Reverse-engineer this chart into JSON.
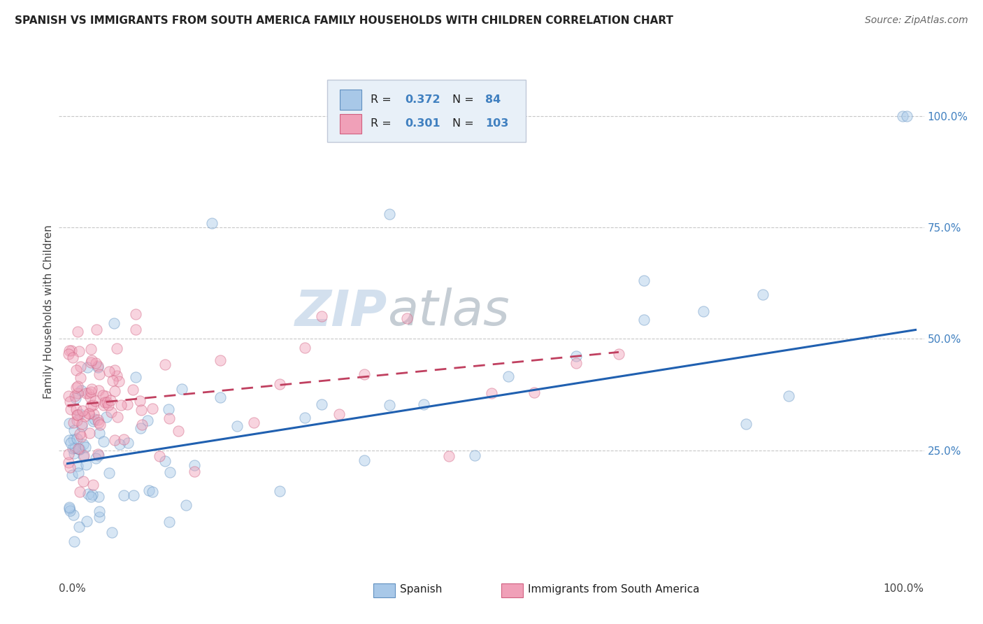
{
  "title": "SPANISH VS IMMIGRANTS FROM SOUTH AMERICA FAMILY HOUSEHOLDS WITH CHILDREN CORRELATION CHART",
  "source": "Source: ZipAtlas.com",
  "ylabel": "Family Households with Children",
  "watermark_zip": "ZIP",
  "watermark_atlas": "atlas",
  "blue_color": "#a8c8e8",
  "pink_color": "#f0a0b8",
  "blue_edge_color": "#6090c0",
  "pink_edge_color": "#d06080",
  "blue_line_color": "#2060b0",
  "pink_line_color": "#c04060",
  "blue_trend_x0": 0,
  "blue_trend_x1": 100,
  "blue_trend_y0": 22.0,
  "blue_trend_y1": 52.0,
  "pink_trend_x0": 0,
  "pink_trend_x1": 65,
  "pink_trend_y0": 35.0,
  "pink_trend_y1": 47.0,
  "background_color": "#ffffff",
  "grid_color": "#c8c8c8",
  "title_fontsize": 11,
  "source_fontsize": 10,
  "axis_label_fontsize": 11,
  "tick_fontsize": 11,
  "watermark_fontsize_zip": 52,
  "watermark_fontsize_atlas": 52,
  "scatter_size": 120,
  "scatter_alpha": 0.45,
  "ylim": [
    0,
    112
  ],
  "xlim": [
    -1,
    101
  ],
  "right_tick_color": "#4080c0",
  "legend_box_color": "#e8f0f8",
  "legend_box_edge": "#c0c8d8"
}
